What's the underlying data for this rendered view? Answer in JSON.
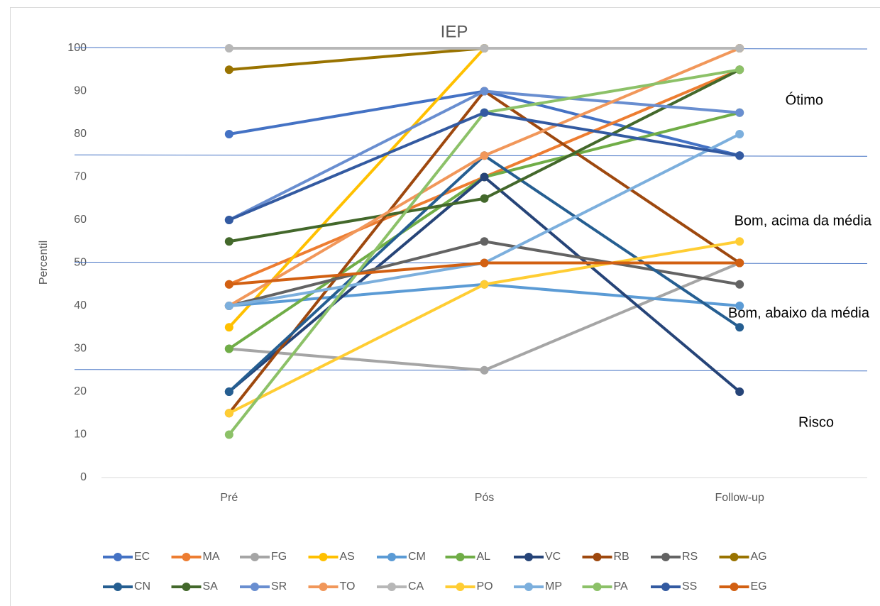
{
  "chart_data": {
    "type": "line",
    "title": "IEP",
    "y_label": "Percentil",
    "categories": [
      "Pré",
      "Pós",
      "Follow-up"
    ],
    "ylim": [
      0,
      100
    ],
    "yticks": [
      0,
      10,
      20,
      30,
      40,
      50,
      60,
      70,
      80,
      90,
      100
    ],
    "reference_lines": [
      100,
      75,
      50,
      25
    ],
    "reference_color": "#4472c4",
    "annotations": [
      "Ótimo",
      "Bom, acima da média",
      "Bom, abaixo da média",
      "Risco"
    ],
    "legend": "bottom",
    "series": [
      {
        "name": "EC",
        "color": "#4472C4",
        "values": [
          80,
          90,
          75
        ]
      },
      {
        "name": "MA",
        "color": "#ED7D31",
        "values": [
          45,
          70,
          95
        ]
      },
      {
        "name": "FG",
        "color": "#A5A5A5",
        "values": [
          30,
          25,
          50
        ]
      },
      {
        "name": "AS",
        "color": "#FFC000",
        "values": [
          35,
          100,
          100
        ]
      },
      {
        "name": "CM",
        "color": "#5B9BD5",
        "values": [
          40,
          45,
          40
        ]
      },
      {
        "name": "AL",
        "color": "#70AD47",
        "values": [
          30,
          70,
          85
        ]
      },
      {
        "name": "VC",
        "color": "#264478",
        "values": [
          20,
          70,
          20
        ]
      },
      {
        "name": "RB",
        "color": "#9E480E",
        "values": [
          15,
          90,
          50
        ]
      },
      {
        "name": "RS",
        "color": "#636363",
        "values": [
          40,
          55,
          45
        ]
      },
      {
        "name": "AG",
        "color": "#997300",
        "values": [
          95,
          100,
          100
        ]
      },
      {
        "name": "CN",
        "color": "#255E91",
        "values": [
          20,
          75,
          35
        ]
      },
      {
        "name": "SA",
        "color": "#43682B",
        "values": [
          55,
          65,
          95
        ]
      },
      {
        "name": "SR",
        "color": "#698ED0",
        "values": [
          60,
          90,
          85
        ]
      },
      {
        "name": "TO",
        "color": "#F1975A",
        "values": [
          40,
          75,
          100
        ]
      },
      {
        "name": "CA",
        "color": "#B7B7B7",
        "values": [
          100,
          100,
          100
        ]
      },
      {
        "name": "PO",
        "color": "#FFCD33",
        "values": [
          15,
          45,
          55
        ]
      },
      {
        "name": "MP",
        "color": "#7CAFDD",
        "values": [
          40,
          50,
          80
        ]
      },
      {
        "name": "PA",
        "color": "#8CC168",
        "values": [
          10,
          85,
          95
        ]
      },
      {
        "name": "SS",
        "color": "#335AA1",
        "values": [
          60,
          85,
          75
        ]
      },
      {
        "name": "EG",
        "color": "#D26012",
        "values": [
          45,
          50,
          50
        ]
      }
    ]
  }
}
